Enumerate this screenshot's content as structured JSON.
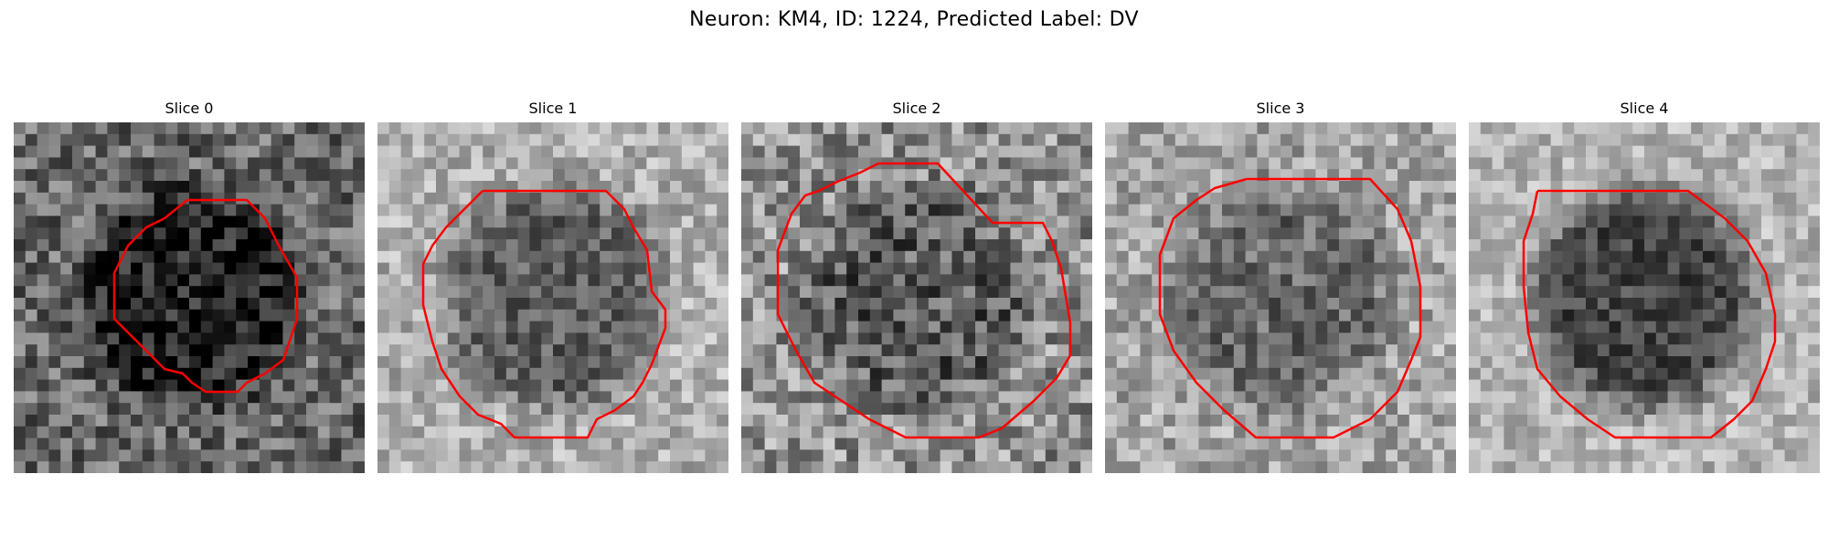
{
  "figure": {
    "title": "Neuron: KM4, ID: 1224, Predicted Label: DV"
  },
  "panels": [
    {
      "title": "Slice 0",
      "image": "grayscale microscopy patch",
      "contour_color": "#ff0000",
      "mean_tone": 105,
      "tone_spread": 60,
      "center_tone": 30
    },
    {
      "title": "Slice 1",
      "image": "grayscale microscopy patch",
      "contour_color": "#ff0000",
      "mean_tone": 175,
      "tone_spread": 45,
      "center_tone": 95
    },
    {
      "title": "Slice 2",
      "image": "grayscale microscopy patch",
      "contour_color": "#ff0000",
      "mean_tone": 145,
      "tone_spread": 65,
      "center_tone": 90
    },
    {
      "title": "Slice 3",
      "image": "grayscale microscopy patch",
      "contour_color": "#ff0000",
      "mean_tone": 165,
      "tone_spread": 50,
      "center_tone": 105
    },
    {
      "title": "Slice 4",
      "image": "grayscale microscopy patch",
      "contour_color": "#ff0000",
      "mean_tone": 180,
      "tone_spread": 40,
      "center_tone": 70
    }
  ]
}
